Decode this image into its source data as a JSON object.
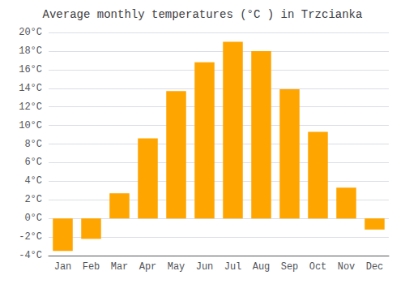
{
  "chart_data": {
    "type": "bar",
    "title": "Average monthly temperatures (°C ) in Trzcianka",
    "categories": [
      "Jan",
      "Feb",
      "Mar",
      "Apr",
      "May",
      "Jun",
      "Jul",
      "Aug",
      "Sep",
      "Oct",
      "Nov",
      "Dec"
    ],
    "values": [
      -3.5,
      -2.2,
      2.7,
      8.6,
      13.7,
      16.8,
      19.0,
      18.0,
      13.9,
      9.3,
      3.3,
      -1.2
    ],
    "color": "#FFA500",
    "ylim": [
      -4,
      20
    ],
    "yticks": [
      {
        "value": -4,
        "label": "-4°C"
      },
      {
        "value": -2,
        "label": "-2°C"
      },
      {
        "value": 0,
        "label": "0°C"
      },
      {
        "value": 2,
        "label": "2°C"
      },
      {
        "value": 4,
        "label": "4°C"
      },
      {
        "value": 6,
        "label": "6°C"
      },
      {
        "value": 8,
        "label": "8°C"
      },
      {
        "value": 10,
        "label": "10°C"
      },
      {
        "value": 12,
        "label": "12°C"
      },
      {
        "value": 14,
        "label": "14°C"
      },
      {
        "value": 16,
        "label": "16°C"
      },
      {
        "value": 18,
        "label": "18°C"
      },
      {
        "value": 20,
        "label": "20°C"
      }
    ],
    "grid": true
  }
}
